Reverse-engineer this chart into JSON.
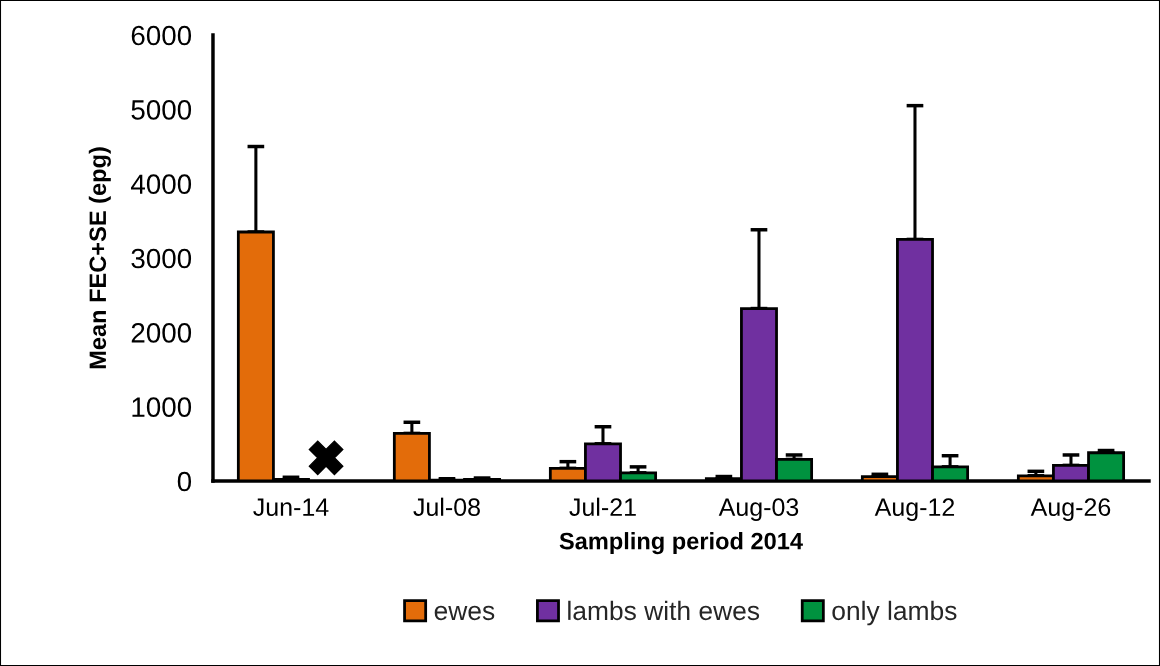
{
  "chart_data": {
    "type": "bar",
    "xlabel": "Sampling period 2014",
    "ylabel": "Mean FEC+SE (epg)",
    "categories": [
      "Jun-14",
      "Jul-08",
      "Jul-21",
      "Aug-03",
      "Aug-12",
      "Aug-26"
    ],
    "series": [
      {
        "name": "ewes",
        "color": "#e36c0a",
        "values": [
          3350,
          640,
          170,
          30,
          60,
          70
        ],
        "errors": [
          [
            3350,
            4500
          ],
          [
            640,
            790
          ],
          [
            170,
            260
          ],
          [
            30,
            60
          ],
          [
            60,
            90
          ],
          [
            70,
            130
          ]
        ]
      },
      {
        "name": "lambs with ewes",
        "color": "#7030a0",
        "values": [
          20,
          10,
          500,
          2320,
          3250,
          210
        ],
        "errors": [
          [
            20,
            50
          ],
          [
            10,
            30
          ],
          [
            500,
            730
          ],
          [
            2320,
            3380
          ],
          [
            3250,
            5050
          ],
          [
            210,
            350
          ]
        ]
      },
      {
        "name": "only lambs",
        "color": "#00923f",
        "values": [
          null,
          20,
          110,
          290,
          190,
          380
        ],
        "errors": [
          null,
          [
            20,
            40
          ],
          [
            110,
            190
          ],
          [
            290,
            350
          ],
          [
            190,
            340
          ],
          [
            380,
            410
          ]
        ]
      }
    ],
    "ylim": [
      0,
      6000
    ],
    "yticks": [
      0,
      1000,
      2000,
      3000,
      4000,
      5000,
      6000
    ],
    "grid": false,
    "legend": "bottom"
  }
}
